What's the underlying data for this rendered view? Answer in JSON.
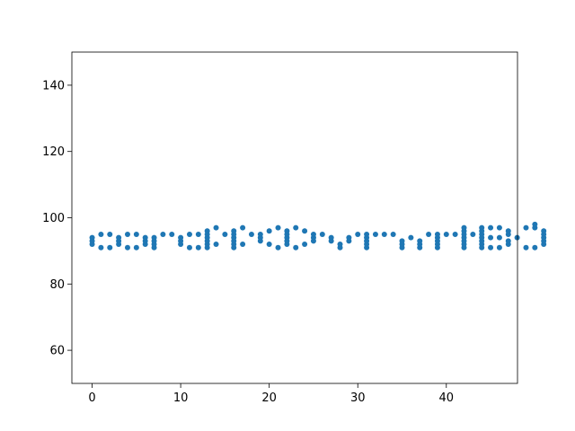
{
  "chart_data": {
    "type": "scatter",
    "title": "",
    "xlabel": "",
    "ylabel": "",
    "xlim": [
      -2.2875,
      48.0375
    ],
    "ylim": [
      50,
      150
    ],
    "xticks": [
      0,
      10,
      20,
      30,
      40
    ],
    "yticks": [
      60,
      80,
      100,
      120,
      140
    ],
    "grid": false,
    "legend": "none",
    "marker_color": "#1f77b4",
    "points": [
      [
        0,
        92
      ],
      [
        0,
        93
      ],
      [
        0,
        94
      ],
      [
        1,
        91
      ],
      [
        1,
        95
      ],
      [
        2,
        91
      ],
      [
        2,
        95
      ],
      [
        3,
        92
      ],
      [
        3,
        93
      ],
      [
        3,
        94
      ],
      [
        4,
        91
      ],
      [
        4,
        95
      ],
      [
        5,
        91
      ],
      [
        5,
        95
      ],
      [
        6,
        92
      ],
      [
        6,
        93
      ],
      [
        6,
        94
      ],
      [
        7,
        91
      ],
      [
        7,
        92
      ],
      [
        7,
        93
      ],
      [
        7,
        94
      ],
      [
        8,
        95
      ],
      [
        9,
        95
      ],
      [
        10,
        92
      ],
      [
        10,
        93
      ],
      [
        10,
        94
      ],
      [
        11,
        91
      ],
      [
        11,
        95
      ],
      [
        12,
        91
      ],
      [
        12,
        95
      ],
      [
        13,
        91
      ],
      [
        13,
        92
      ],
      [
        13,
        93
      ],
      [
        13,
        94
      ],
      [
        13,
        95
      ],
      [
        13,
        96
      ],
      [
        14,
        92
      ],
      [
        14,
        97
      ],
      [
        15,
        95
      ],
      [
        16,
        91
      ],
      [
        16,
        92
      ],
      [
        16,
        93
      ],
      [
        16,
        94
      ],
      [
        16,
        95
      ],
      [
        16,
        96
      ],
      [
        17,
        92
      ],
      [
        17,
        97
      ],
      [
        18,
        95
      ],
      [
        19,
        93
      ],
      [
        19,
        94
      ],
      [
        19,
        95
      ],
      [
        20,
        92
      ],
      [
        20,
        96
      ],
      [
        21,
        91
      ],
      [
        21,
        97
      ],
      [
        22,
        92
      ],
      [
        22,
        93
      ],
      [
        22,
        94
      ],
      [
        22,
        95
      ],
      [
        22,
        96
      ],
      [
        23,
        91
      ],
      [
        23,
        97
      ],
      [
        24,
        92
      ],
      [
        24,
        96
      ],
      [
        25,
        93
      ],
      [
        25,
        94
      ],
      [
        25,
        95
      ],
      [
        26,
        95
      ],
      [
        27,
        93
      ],
      [
        27,
        94
      ],
      [
        28,
        91
      ],
      [
        28,
        92
      ],
      [
        29,
        93
      ],
      [
        29,
        94
      ],
      [
        30,
        95
      ],
      [
        31,
        91
      ],
      [
        31,
        92
      ],
      [
        31,
        93
      ],
      [
        31,
        94
      ],
      [
        31,
        95
      ],
      [
        32,
        95
      ],
      [
        33,
        95
      ],
      [
        34,
        95
      ],
      [
        35,
        91
      ],
      [
        35,
        92
      ],
      [
        35,
        93
      ],
      [
        36,
        94
      ],
      [
        37,
        91
      ],
      [
        37,
        92
      ],
      [
        37,
        93
      ],
      [
        38,
        95
      ],
      [
        39,
        91
      ],
      [
        39,
        92
      ],
      [
        39,
        93
      ],
      [
        39,
        94
      ],
      [
        39,
        95
      ],
      [
        40,
        95
      ],
      [
        41,
        95
      ],
      [
        42,
        91
      ],
      [
        42,
        92
      ],
      [
        42,
        93
      ],
      [
        42,
        94
      ],
      [
        42,
        95
      ],
      [
        42,
        96
      ],
      [
        42,
        97
      ],
      [
        43,
        95
      ],
      [
        44,
        91
      ],
      [
        44,
        92
      ],
      [
        44,
        93
      ],
      [
        44,
        94
      ],
      [
        44,
        95
      ],
      [
        44,
        96
      ],
      [
        44,
        97
      ],
      [
        45,
        91
      ],
      [
        45,
        94
      ],
      [
        45,
        97
      ],
      [
        46,
        91
      ],
      [
        46,
        94
      ],
      [
        46,
        97
      ],
      [
        47,
        92
      ],
      [
        47,
        93
      ],
      [
        47,
        95
      ],
      [
        47,
        96
      ],
      [
        48,
        94
      ],
      [
        49,
        91
      ],
      [
        49,
        97
      ],
      [
        50,
        91
      ],
      [
        50,
        97
      ],
      [
        50,
        98
      ],
      [
        51,
        92
      ],
      [
        51,
        93
      ],
      [
        51,
        94
      ],
      [
        51,
        95
      ],
      [
        51,
        96
      ]
    ]
  }
}
